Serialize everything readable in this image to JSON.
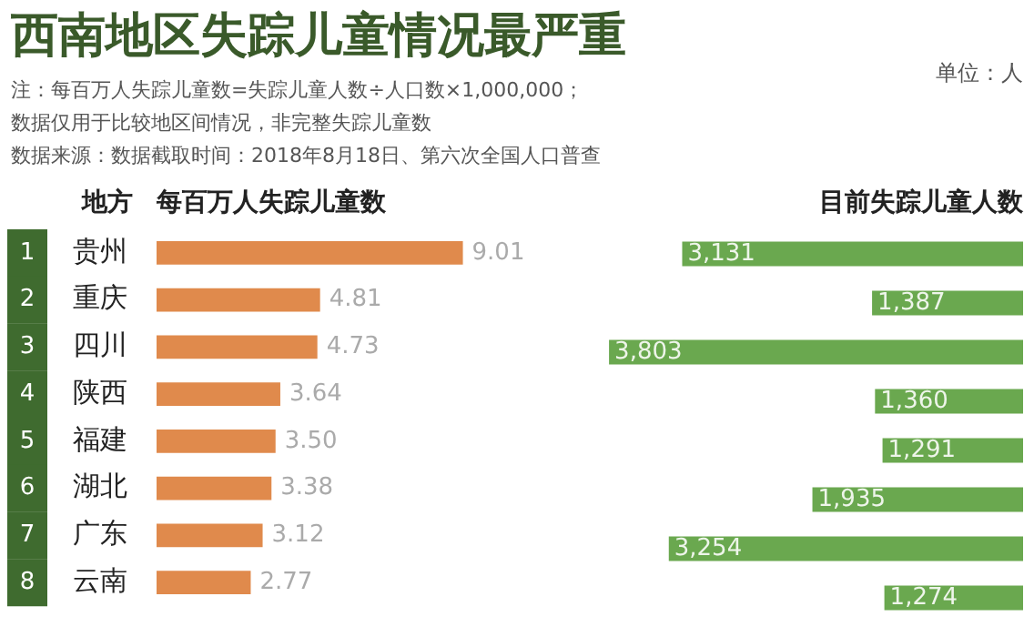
{
  "chart_data": [
    {
      "type": "bar",
      "orientation": "horizontal",
      "title": "西南地区失踪儿童情况最严重",
      "ylabel": "地方",
      "xlabel": "每百万人失踪儿童数",
      "categories": [
        "贵州",
        "重庆",
        "四川",
        "陕西",
        "福建",
        "湖北",
        "广东",
        "云南"
      ],
      "values": [
        9.01,
        4.81,
        4.73,
        3.64,
        3.5,
        3.38,
        3.12,
        2.77
      ],
      "value_labels": [
        "9.01",
        "4.81",
        "4.73",
        "3.64",
        "3.50",
        "3.38",
        "3.12",
        "2.77"
      ],
      "color": "#e08a4c",
      "annotations": [
        "注：每百万人失踪儿童数=失踪儿童人数÷人口数×1,000,000；",
        "数据仅用于比较地区间情况，非完整失踪儿童数",
        "数据来源：数据截取时间：2018年8月18日、第六次全国人口普查",
        "1",
        "2",
        "3",
        "4",
        "5",
        "6",
        "7",
        "8"
      ]
    },
    {
      "type": "bar",
      "orientation": "horizontal",
      "xlabel": "目前失踪儿童人数",
      "categories": [
        null,
        null,
        null,
        null,
        null,
        null,
        null,
        null
      ],
      "values": [
        3131,
        1387,
        3803,
        1360,
        1291,
        1935,
        3254,
        1274
      ],
      "value_labels": [
        "3,131",
        "1,387",
        "3,803",
        "1,360",
        "1,291",
        "1,935",
        "3,254",
        "1,274"
      ],
      "color": "#6aa84f",
      "annotations": [
        "单位：人"
      ]
    }
  ]
}
